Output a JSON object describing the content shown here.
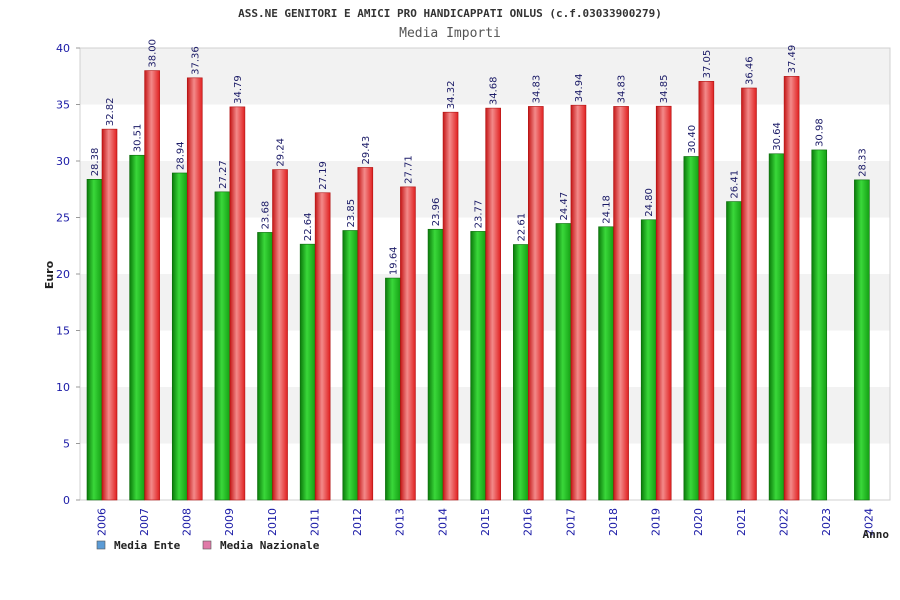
{
  "chart_data": {
    "type": "bar",
    "title": "ASS.NE GENITORI E AMICI PRO HANDICAPPATI ONLUS (c.f.03033900279)",
    "subtitle": "Media Importi",
    "xlabel": "Anno",
    "ylabel": "Euro",
    "ylim": [
      0,
      40
    ],
    "yticks": [
      0,
      5,
      10,
      15,
      20,
      25,
      30,
      35,
      40
    ],
    "grid": "horizontal bands",
    "legend_position": "bottom-left",
    "categories": [
      "2006",
      "2007",
      "2008",
      "2009",
      "2010",
      "2011",
      "2012",
      "2013",
      "2014",
      "2015",
      "2016",
      "2017",
      "2018",
      "2019",
      "2020",
      "2021",
      "2022",
      "2023",
      "2024"
    ],
    "series": [
      {
        "name": "Media Ente",
        "color": "#22aa22",
        "legend_color": "#5b9bd5",
        "values": [
          28.38,
          30.51,
          28.94,
          27.27,
          23.68,
          22.64,
          23.85,
          19.64,
          23.96,
          23.77,
          22.61,
          24.47,
          24.18,
          24.8,
          30.4,
          26.41,
          30.64,
          30.98,
          28.33
        ],
        "labels": [
          "28.38",
          "30.51",
          "28.94",
          "27.27",
          "23.68",
          "22.64",
          "23.85",
          "19.64",
          "23.96",
          "23.77",
          "22.61",
          "24.47",
          "24.18",
          "24.80",
          "30.40",
          "26.41",
          "30.64",
          "30.98",
          "28.33"
        ]
      },
      {
        "name": "Media Nazionale",
        "color": "#e52222",
        "legend_color": "#e07aa8",
        "values": [
          32.82,
          38.0,
          37.36,
          34.79,
          29.24,
          27.19,
          29.43,
          27.71,
          34.32,
          34.68,
          34.83,
          34.94,
          34.83,
          34.85,
          37.05,
          36.46,
          37.49,
          null,
          null
        ],
        "labels": [
          "32.82",
          "38.00",
          "37.36",
          "34.79",
          "29.24",
          "27.19",
          "29.43",
          "27.71",
          "34.32",
          "34.68",
          "34.83",
          "34.94",
          "34.83",
          "34.85",
          "37.05",
          "36.46",
          "37.49",
          null,
          null
        ]
      }
    ]
  }
}
